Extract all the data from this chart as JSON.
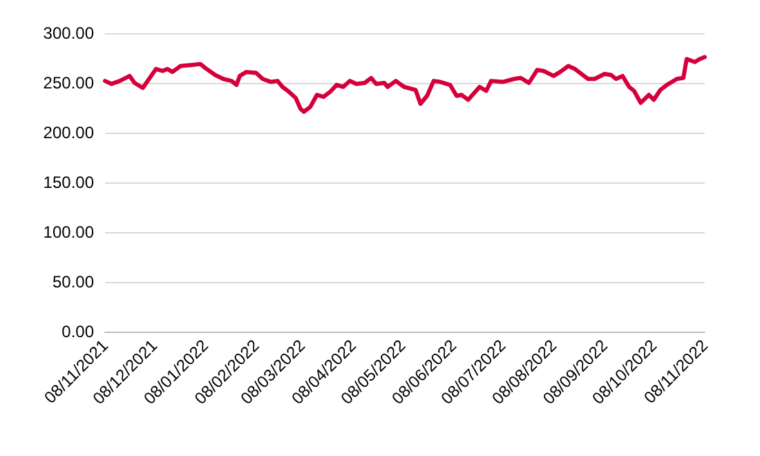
{
  "chart_data": {
    "type": "line",
    "x": [
      "2021-11-08",
      "2021-11-12",
      "2021-11-17",
      "2021-11-23",
      "2021-11-26",
      "2021-12-01",
      "2021-12-09",
      "2021-12-13",
      "2021-12-16",
      "2021-12-19",
      "2021-12-24",
      "2021-12-31",
      "2022-01-05",
      "2022-01-08",
      "2022-01-14",
      "2022-01-19",
      "2022-01-24",
      "2022-01-27",
      "2022-01-29",
      "2022-02-02",
      "2022-02-08",
      "2022-02-12",
      "2022-02-17",
      "2022-02-21",
      "2022-02-24",
      "2022-02-28",
      "2022-03-04",
      "2022-03-07",
      "2022-03-09",
      "2022-03-13",
      "2022-03-17",
      "2022-03-21",
      "2022-03-25",
      "2022-03-29",
      "2022-04-02",
      "2022-04-06",
      "2022-04-10",
      "2022-04-15",
      "2022-04-19",
      "2022-04-22",
      "2022-04-27",
      "2022-04-29",
      "2022-05-04",
      "2022-05-09",
      "2022-05-16",
      "2022-05-19",
      "2022-05-23",
      "2022-05-27",
      "2022-05-31",
      "2022-06-06",
      "2022-06-10",
      "2022-06-13",
      "2022-06-17",
      "2022-06-24",
      "2022-06-28",
      "2022-07-01",
      "2022-07-08",
      "2022-07-15",
      "2022-07-19",
      "2022-07-24",
      "2022-07-29",
      "2022-08-02",
      "2022-08-08",
      "2022-08-12",
      "2022-08-17",
      "2022-08-21",
      "2022-08-25",
      "2022-08-29",
      "2022-09-02",
      "2022-09-08",
      "2022-09-12",
      "2022-09-15",
      "2022-09-19",
      "2022-09-23",
      "2022-09-26",
      "2022-09-30",
      "2022-10-05",
      "2022-10-08",
      "2022-10-12",
      "2022-10-16",
      "2022-10-22",
      "2022-10-26",
      "2022-10-28",
      "2022-11-02",
      "2022-11-05",
      "2022-11-08"
    ],
    "series": [
      {
        "color": "#d5003a",
        "values": [
          252,
          249,
          252,
          257,
          250,
          245,
          264,
          262,
          264,
          261,
          267,
          268,
          269,
          265,
          258,
          254,
          252,
          248,
          257,
          261,
          260,
          254,
          251,
          252,
          246,
          241,
          235,
          224,
          221,
          226,
          238,
          236,
          241,
          248,
          246,
          252,
          249,
          250,
          255,
          249,
          250,
          246,
          252,
          246,
          243,
          229,
          237,
          252,
          251,
          248,
          237,
          238,
          233,
          246,
          242,
          252,
          251,
          254,
          255,
          250,
          263,
          262,
          257,
          261,
          267,
          264,
          259,
          254,
          254,
          259,
          258,
          254,
          257,
          246,
          242,
          230,
          238,
          233,
          243,
          248,
          254,
          255,
          274,
          271,
          274,
          276
        ]
      }
    ],
    "ylim": [
      0,
      300
    ],
    "yticks": [
      {
        "value": 0,
        "label": "0.00"
      },
      {
        "value": 50,
        "label": "50.00"
      },
      {
        "value": 100,
        "label": "100.00"
      },
      {
        "value": 150,
        "label": "150.00"
      },
      {
        "value": 200,
        "label": "200.00"
      },
      {
        "value": 250,
        "label": "250.00"
      },
      {
        "value": 300,
        "label": "300.00"
      }
    ],
    "xlim": [
      "2021-11-08",
      "2022-11-08"
    ],
    "xticks": [
      {
        "value": "2021-11-08",
        "label": "08/11/2021"
      },
      {
        "value": "2021-12-08",
        "label": "08/12/2021"
      },
      {
        "value": "2022-01-08",
        "label": "08/01/2022"
      },
      {
        "value": "2022-02-08",
        "label": "08/02/2022"
      },
      {
        "value": "2022-03-08",
        "label": "08/03/2022"
      },
      {
        "value": "2022-04-08",
        "label": "08/04/2022"
      },
      {
        "value": "2022-05-08",
        "label": "08/05/2022"
      },
      {
        "value": "2022-06-08",
        "label": "08/06/2022"
      },
      {
        "value": "2022-07-08",
        "label": "08/07/2022"
      },
      {
        "value": "2022-08-08",
        "label": "08/08/2022"
      },
      {
        "value": "2022-09-08",
        "label": "08/09/2022"
      },
      {
        "value": "2022-10-08",
        "label": "08/10/2022"
      },
      {
        "value": "2022-11-08",
        "label": "08/11/2022"
      }
    ],
    "grid": "y",
    "marker": "none",
    "line_style": "solid"
  }
}
